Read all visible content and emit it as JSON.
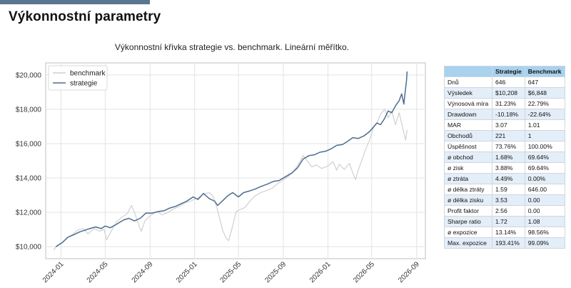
{
  "page_title": "Výkonnostní parametry",
  "chart_data": {
    "type": "line",
    "title": "Výkonnostní křivka strategie vs. benchmark. Lineární měřítko.",
    "xlabel": "",
    "ylabel": "",
    "x_ticks": [
      "2024-01",
      "2024-05",
      "2024-09",
      "2025-01",
      "2025-05",
      "2025-09",
      "2026-01",
      "2026-05",
      "2026-09"
    ],
    "y_ticks": [
      "$10,000",
      "$12,000",
      "$14,000",
      "$16,000",
      "$18,000",
      "$20,000"
    ],
    "xlim": [
      "2023-11-20",
      "2026-09-25"
    ],
    "ylim": [
      9300,
      20700
    ],
    "grid": true,
    "legend_position": "top-left",
    "colors": {
      "benchmark": "#d0d0d0",
      "strategie": "#4f6d8f"
    },
    "series": [
      {
        "name": "benchmark",
        "points": [
          [
            "2023-12-12",
            9800
          ],
          [
            "2023-12-20",
            10050
          ],
          [
            "2024-01-05",
            10250
          ],
          [
            "2024-01-18",
            10550
          ],
          [
            "2024-02-01",
            10700
          ],
          [
            "2024-02-15",
            10950
          ],
          [
            "2024-03-01",
            11050
          ],
          [
            "2024-03-15",
            10750
          ],
          [
            "2024-04-01",
            11050
          ],
          [
            "2024-04-15",
            10900
          ],
          [
            "2024-04-28",
            11000
          ],
          [
            "2024-05-05",
            10400
          ],
          [
            "2024-05-15",
            10800
          ],
          [
            "2024-06-01",
            11450
          ],
          [
            "2024-06-15",
            11700
          ],
          [
            "2024-07-01",
            11950
          ],
          [
            "2024-07-12",
            12400
          ],
          [
            "2024-07-22",
            11900
          ],
          [
            "2024-08-01",
            11250
          ],
          [
            "2024-08-08",
            10900
          ],
          [
            "2024-08-18",
            11500
          ],
          [
            "2024-09-01",
            11800
          ],
          [
            "2024-09-20",
            12050
          ],
          [
            "2024-10-05",
            11850
          ],
          [
            "2024-10-20",
            12000
          ],
          [
            "2024-11-05",
            12200
          ],
          [
            "2024-11-20",
            12350
          ],
          [
            "2024-12-05",
            12550
          ],
          [
            "2024-12-20",
            12650
          ],
          [
            "2025-01-10",
            12850
          ],
          [
            "2025-01-25",
            13050
          ],
          [
            "2025-02-10",
            13150
          ],
          [
            "2025-02-20",
            12950
          ],
          [
            "2025-03-01",
            12400
          ],
          [
            "2025-03-10",
            11700
          ],
          [
            "2025-03-18",
            11000
          ],
          [
            "2025-03-28",
            10500
          ],
          [
            "2025-04-04",
            10350
          ],
          [
            "2025-04-15",
            11200
          ],
          [
            "2025-04-25",
            12050
          ],
          [
            "2025-05-05",
            12150
          ],
          [
            "2025-05-20",
            12300
          ],
          [
            "2025-06-01",
            12650
          ],
          [
            "2025-06-15",
            12950
          ],
          [
            "2025-07-01",
            13150
          ],
          [
            "2025-07-15",
            13250
          ],
          [
            "2025-08-01",
            13400
          ],
          [
            "2025-08-15",
            13650
          ],
          [
            "2025-09-01",
            13900
          ],
          [
            "2025-09-15",
            14100
          ],
          [
            "2025-10-01",
            14450
          ],
          [
            "2025-10-15",
            14900
          ],
          [
            "2025-10-25",
            15300
          ],
          [
            "2025-11-05",
            15000
          ],
          [
            "2025-11-18",
            14650
          ],
          [
            "2025-12-01",
            14750
          ],
          [
            "2025-12-15",
            14550
          ],
          [
            "2026-01-01",
            14700
          ],
          [
            "2026-01-15",
            14950
          ],
          [
            "2026-01-25",
            14450
          ],
          [
            "2026-02-01",
            14800
          ],
          [
            "2026-02-15",
            14500
          ],
          [
            "2026-03-01",
            14850
          ],
          [
            "2026-03-10",
            14300
          ],
          [
            "2026-03-18",
            13900
          ],
          [
            "2026-03-25",
            14450
          ],
          [
            "2026-04-05",
            15100
          ],
          [
            "2026-04-15",
            15700
          ],
          [
            "2026-04-25",
            16200
          ],
          [
            "2026-05-05",
            16900
          ],
          [
            "2026-05-15",
            17200
          ],
          [
            "2026-05-25",
            17700
          ],
          [
            "2026-06-05",
            18000
          ],
          [
            "2026-06-15",
            17500
          ],
          [
            "2026-06-25",
            17900
          ],
          [
            "2026-07-05",
            17100
          ],
          [
            "2026-07-15",
            17800
          ],
          [
            "2026-07-25",
            16900
          ],
          [
            "2026-08-02",
            16200
          ],
          [
            "2026-08-06",
            16800
          ]
        ]
      },
      {
        "name": "strategie",
        "points": [
          [
            "2023-12-18",
            10000
          ],
          [
            "2024-01-05",
            10250
          ],
          [
            "2024-01-20",
            10550
          ],
          [
            "2024-02-05",
            10700
          ],
          [
            "2024-02-20",
            10850
          ],
          [
            "2024-03-05",
            10950
          ],
          [
            "2024-03-20",
            11050
          ],
          [
            "2024-04-05",
            11150
          ],
          [
            "2024-04-20",
            11050
          ],
          [
            "2024-05-01",
            11200
          ],
          [
            "2024-05-15",
            11100
          ],
          [
            "2024-06-01",
            11300
          ],
          [
            "2024-06-20",
            11550
          ],
          [
            "2024-07-05",
            11650
          ],
          [
            "2024-07-20",
            11500
          ],
          [
            "2024-08-05",
            11650
          ],
          [
            "2024-08-20",
            11950
          ],
          [
            "2024-09-05",
            11950
          ],
          [
            "2024-09-25",
            12050
          ],
          [
            "2024-10-10",
            12100
          ],
          [
            "2024-10-25",
            12250
          ],
          [
            "2024-11-10",
            12350
          ],
          [
            "2024-11-25",
            12500
          ],
          [
            "2024-12-10",
            12650
          ],
          [
            "2024-12-28",
            12900
          ],
          [
            "2025-01-10",
            12750
          ],
          [
            "2025-01-25",
            13100
          ],
          [
            "2025-02-10",
            12800
          ],
          [
            "2025-02-25",
            12650
          ],
          [
            "2025-03-05",
            12400
          ],
          [
            "2025-03-20",
            12700
          ],
          [
            "2025-04-01",
            12950
          ],
          [
            "2025-04-15",
            13150
          ],
          [
            "2025-05-01",
            12900
          ],
          [
            "2025-05-15",
            13150
          ],
          [
            "2025-06-01",
            13250
          ],
          [
            "2025-06-15",
            13350
          ],
          [
            "2025-07-01",
            13500
          ],
          [
            "2025-07-20",
            13650
          ],
          [
            "2025-08-05",
            13800
          ],
          [
            "2025-08-20",
            13850
          ],
          [
            "2025-09-05",
            14050
          ],
          [
            "2025-09-25",
            14300
          ],
          [
            "2025-10-10",
            14600
          ],
          [
            "2025-10-25",
            15100
          ],
          [
            "2025-11-10",
            15300
          ],
          [
            "2025-11-25",
            15350
          ],
          [
            "2025-12-10",
            15500
          ],
          [
            "2025-12-25",
            15550
          ],
          [
            "2026-01-10",
            15700
          ],
          [
            "2026-01-25",
            15900
          ],
          [
            "2026-02-10",
            15950
          ],
          [
            "2026-02-25",
            16150
          ],
          [
            "2026-03-10",
            16350
          ],
          [
            "2026-03-25",
            16300
          ],
          [
            "2026-04-10",
            16450
          ],
          [
            "2026-04-25",
            16700
          ],
          [
            "2026-05-05",
            16950
          ],
          [
            "2026-05-15",
            17200
          ],
          [
            "2026-05-25",
            17100
          ],
          [
            "2026-06-05",
            17450
          ],
          [
            "2026-06-15",
            17900
          ],
          [
            "2026-06-25",
            17800
          ],
          [
            "2026-07-05",
            18200
          ],
          [
            "2026-07-15",
            18500
          ],
          [
            "2026-07-22",
            18900
          ],
          [
            "2026-07-28",
            18300
          ],
          [
            "2026-08-01",
            19100
          ],
          [
            "2026-08-04",
            19600
          ],
          [
            "2026-08-06",
            20200
          ]
        ]
      }
    ]
  },
  "stats_table": {
    "headers": [
      "",
      "Strategie",
      "Benchmark"
    ],
    "rows": [
      [
        "Dnů",
        "646",
        "647"
      ],
      [
        "Výsledek",
        "$10,208",
        "$6,848"
      ],
      [
        "Výnosová míra",
        "31.23%",
        "22.79%"
      ],
      [
        "Drawdown",
        "-10.18%",
        "-22.64%"
      ],
      [
        "MAR",
        "3.07",
        "1.01"
      ],
      [
        "Obchodů",
        "221",
        "1"
      ],
      [
        "Úspěšnost",
        "73.76%",
        "100.00%"
      ],
      [
        "ø obchod",
        "1.68%",
        "69.64%"
      ],
      [
        "ø zisk",
        "3.88%",
        "69.64%"
      ],
      [
        "ø ztráta",
        "4.49%",
        "0.00%"
      ],
      [
        "ø délka ztráty",
        "1.59",
        "646.00"
      ],
      [
        "ø délka zisku",
        "3.53",
        "0.00"
      ],
      [
        "Profit faktor",
        "2.56",
        "0.00"
      ],
      [
        "Sharpe ratio",
        "1.72",
        "1.08"
      ],
      [
        "ø expozice",
        "13.14%",
        "98.56%"
      ],
      [
        "Max. expozice",
        "193.41%",
        "99.09%"
      ]
    ]
  }
}
